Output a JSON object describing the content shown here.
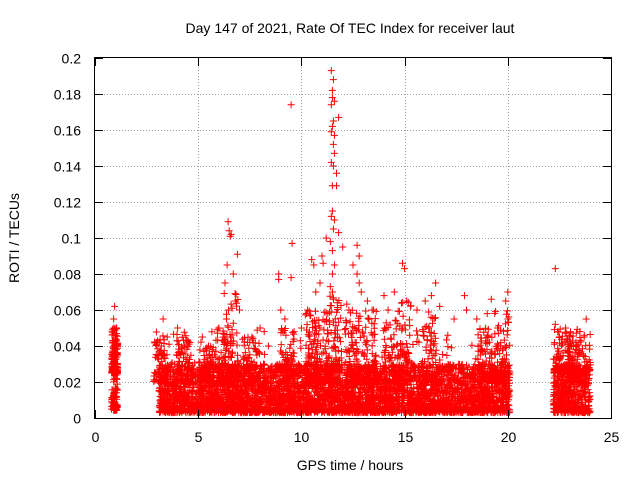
{
  "chart_data": {
    "type": "scatter",
    "marker": "+",
    "color": "#ff0000",
    "title": "Day 147 of 2021, Rate Of TEC Index for receiver laut",
    "xlabel": "GPS time / hours",
    "ylabel": "ROTI / TECUs",
    "xlim": [
      0,
      25
    ],
    "ylim": [
      0,
      0.2
    ],
    "xticks": [
      0,
      5,
      10,
      15,
      20,
      25
    ],
    "xtick_labels": [
      "0",
      "5",
      "10",
      "15",
      "20",
      "25"
    ],
    "yticks": [
      0,
      0.02,
      0.04,
      0.06,
      0.08,
      0.1,
      0.12,
      0.14,
      0.16,
      0.18,
      0.2
    ],
    "ytick_labels": [
      "0",
      "0.02",
      "0.04",
      "0.06",
      "0.08",
      "0.1",
      "0.12",
      "0.14",
      "0.16",
      "0.18",
      "0.2"
    ],
    "grid": true,
    "dense_segments": [
      {
        "x_start": 0.8,
        "x_end": 1.1,
        "y_min": 0.004,
        "y_max": 0.025
      },
      {
        "x_start": 3.1,
        "x_end": 20.1,
        "y_min": 0.003,
        "y_max": 0.03
      },
      {
        "x_start": 22.2,
        "x_end": 24.0,
        "y_min": 0.003,
        "y_max": 0.03
      }
    ],
    "highlighted_points": [
      {
        "x": 0.95,
        "y": 0.062
      },
      {
        "x": 0.9,
        "y": 0.055
      },
      {
        "x": 1.05,
        "y": 0.05
      },
      {
        "x": 1.0,
        "y": 0.043
      },
      {
        "x": 3.3,
        "y": 0.055
      },
      {
        "x": 3.5,
        "y": 0.045
      },
      {
        "x": 4.0,
        "y": 0.05
      },
      {
        "x": 4.6,
        "y": 0.042
      },
      {
        "x": 5.2,
        "y": 0.045
      },
      {
        "x": 5.5,
        "y": 0.04
      },
      {
        "x": 6.0,
        "y": 0.05
      },
      {
        "x": 6.45,
        "y": 0.109
      },
      {
        "x": 6.5,
        "y": 0.104
      },
      {
        "x": 6.55,
        "y": 0.101
      },
      {
        "x": 6.6,
        "y": 0.102
      },
      {
        "x": 6.9,
        "y": 0.091
      },
      {
        "x": 6.4,
        "y": 0.085
      },
      {
        "x": 6.7,
        "y": 0.08
      },
      {
        "x": 6.3,
        "y": 0.075
      },
      {
        "x": 6.8,
        "y": 0.065
      },
      {
        "x": 7.0,
        "y": 0.06
      },
      {
        "x": 7.6,
        "y": 0.045
      },
      {
        "x": 8.0,
        "y": 0.05
      },
      {
        "x": 8.2,
        "y": 0.048
      },
      {
        "x": 8.4,
        "y": 0.04
      },
      {
        "x": 8.9,
        "y": 0.08
      },
      {
        "x": 8.9,
        "y": 0.077
      },
      {
        "x": 9.0,
        "y": 0.06
      },
      {
        "x": 9.2,
        "y": 0.055
      },
      {
        "x": 9.5,
        "y": 0.174
      },
      {
        "x": 9.55,
        "y": 0.097
      },
      {
        "x": 9.5,
        "y": 0.078
      },
      {
        "x": 10.0,
        "y": 0.05
      },
      {
        "x": 10.3,
        "y": 0.06
      },
      {
        "x": 10.5,
        "y": 0.088
      },
      {
        "x": 10.6,
        "y": 0.085
      },
      {
        "x": 10.7,
        "y": 0.07
      },
      {
        "x": 10.9,
        "y": 0.075
      },
      {
        "x": 11.0,
        "y": 0.09
      },
      {
        "x": 11.05,
        "y": 0.086
      },
      {
        "x": 11.2,
        "y": 0.1
      },
      {
        "x": 11.45,
        "y": 0.193
      },
      {
        "x": 11.55,
        "y": 0.188
      },
      {
        "x": 11.5,
        "y": 0.182
      },
      {
        "x": 11.5,
        "y": 0.178
      },
      {
        "x": 11.45,
        "y": 0.174
      },
      {
        "x": 11.6,
        "y": 0.176
      },
      {
        "x": 11.55,
        "y": 0.165
      },
      {
        "x": 11.8,
        "y": 0.167
      },
      {
        "x": 11.5,
        "y": 0.162
      },
      {
        "x": 11.45,
        "y": 0.159
      },
      {
        "x": 11.6,
        "y": 0.157
      },
      {
        "x": 11.55,
        "y": 0.152
      },
      {
        "x": 11.6,
        "y": 0.147
      },
      {
        "x": 11.45,
        "y": 0.142
      },
      {
        "x": 11.55,
        "y": 0.14
      },
      {
        "x": 11.7,
        "y": 0.136
      },
      {
        "x": 11.5,
        "y": 0.129
      },
      {
        "x": 11.7,
        "y": 0.129
      },
      {
        "x": 11.5,
        "y": 0.115
      },
      {
        "x": 11.45,
        "y": 0.112
      },
      {
        "x": 11.6,
        "y": 0.11
      },
      {
        "x": 11.55,
        "y": 0.105
      },
      {
        "x": 11.8,
        "y": 0.103
      },
      {
        "x": 11.4,
        "y": 0.098
      },
      {
        "x": 11.5,
        "y": 0.093
      },
      {
        "x": 11.6,
        "y": 0.085
      },
      {
        "x": 11.5,
        "y": 0.08
      },
      {
        "x": 11.4,
        "y": 0.073
      },
      {
        "x": 11.5,
        "y": 0.07
      },
      {
        "x": 12.0,
        "y": 0.095
      },
      {
        "x": 12.3,
        "y": 0.06
      },
      {
        "x": 12.5,
        "y": 0.085
      },
      {
        "x": 12.7,
        "y": 0.096
      },
      {
        "x": 12.8,
        "y": 0.09
      },
      {
        "x": 12.7,
        "y": 0.08
      },
      {
        "x": 12.8,
        "y": 0.075
      },
      {
        "x": 12.9,
        "y": 0.07
      },
      {
        "x": 13.2,
        "y": 0.065
      },
      {
        "x": 13.5,
        "y": 0.06
      },
      {
        "x": 14.0,
        "y": 0.068
      },
      {
        "x": 14.2,
        "y": 0.06
      },
      {
        "x": 14.5,
        "y": 0.07
      },
      {
        "x": 14.9,
        "y": 0.086
      },
      {
        "x": 15.0,
        "y": 0.083
      },
      {
        "x": 15.1,
        "y": 0.065
      },
      {
        "x": 15.6,
        "y": 0.06
      },
      {
        "x": 16.0,
        "y": 0.065
      },
      {
        "x": 16.3,
        "y": 0.068
      },
      {
        "x": 16.5,
        "y": 0.075
      },
      {
        "x": 16.7,
        "y": 0.062
      },
      {
        "x": 17.4,
        "y": 0.055
      },
      {
        "x": 17.9,
        "y": 0.068
      },
      {
        "x": 18.0,
        "y": 0.06
      },
      {
        "x": 18.5,
        "y": 0.055
      },
      {
        "x": 19.0,
        "y": 0.058
      },
      {
        "x": 19.2,
        "y": 0.066
      },
      {
        "x": 19.5,
        "y": 0.05
      },
      {
        "x": 19.9,
        "y": 0.065
      },
      {
        "x": 20.0,
        "y": 0.07
      },
      {
        "x": 20.0,
        "y": 0.055
      },
      {
        "x": 22.3,
        "y": 0.083
      },
      {
        "x": 22.3,
        "y": 0.052
      },
      {
        "x": 22.5,
        "y": 0.045
      },
      {
        "x": 22.8,
        "y": 0.05
      },
      {
        "x": 23.0,
        "y": 0.045
      },
      {
        "x": 23.3,
        "y": 0.042
      },
      {
        "x": 23.5,
        "y": 0.048
      },
      {
        "x": 23.8,
        "y": 0.055
      },
      {
        "x": 23.7,
        "y": 0.045
      }
    ],
    "bursts": [
      {
        "x": 3.2,
        "peak": 0.05
      },
      {
        "x": 4.3,
        "peak": 0.048
      },
      {
        "x": 5.4,
        "peak": 0.04
      },
      {
        "x": 6.2,
        "peak": 0.05
      },
      {
        "x": 6.6,
        "peak": 0.07
      },
      {
        "x": 7.5,
        "peak": 0.045
      },
      {
        "x": 9.3,
        "peak": 0.05
      },
      {
        "x": 10.5,
        "peak": 0.06
      },
      {
        "x": 11.0,
        "peak": 0.06
      },
      {
        "x": 11.6,
        "peak": 0.07
      },
      {
        "x": 12.5,
        "peak": 0.065
      },
      {
        "x": 13.3,
        "peak": 0.06
      },
      {
        "x": 14.3,
        "peak": 0.055
      },
      {
        "x": 15.0,
        "peak": 0.065
      },
      {
        "x": 16.2,
        "peak": 0.06
      },
      {
        "x": 18.9,
        "peak": 0.05
      },
      {
        "x": 19.7,
        "peak": 0.06
      },
      {
        "x": 23.2,
        "peak": 0.045
      }
    ]
  }
}
